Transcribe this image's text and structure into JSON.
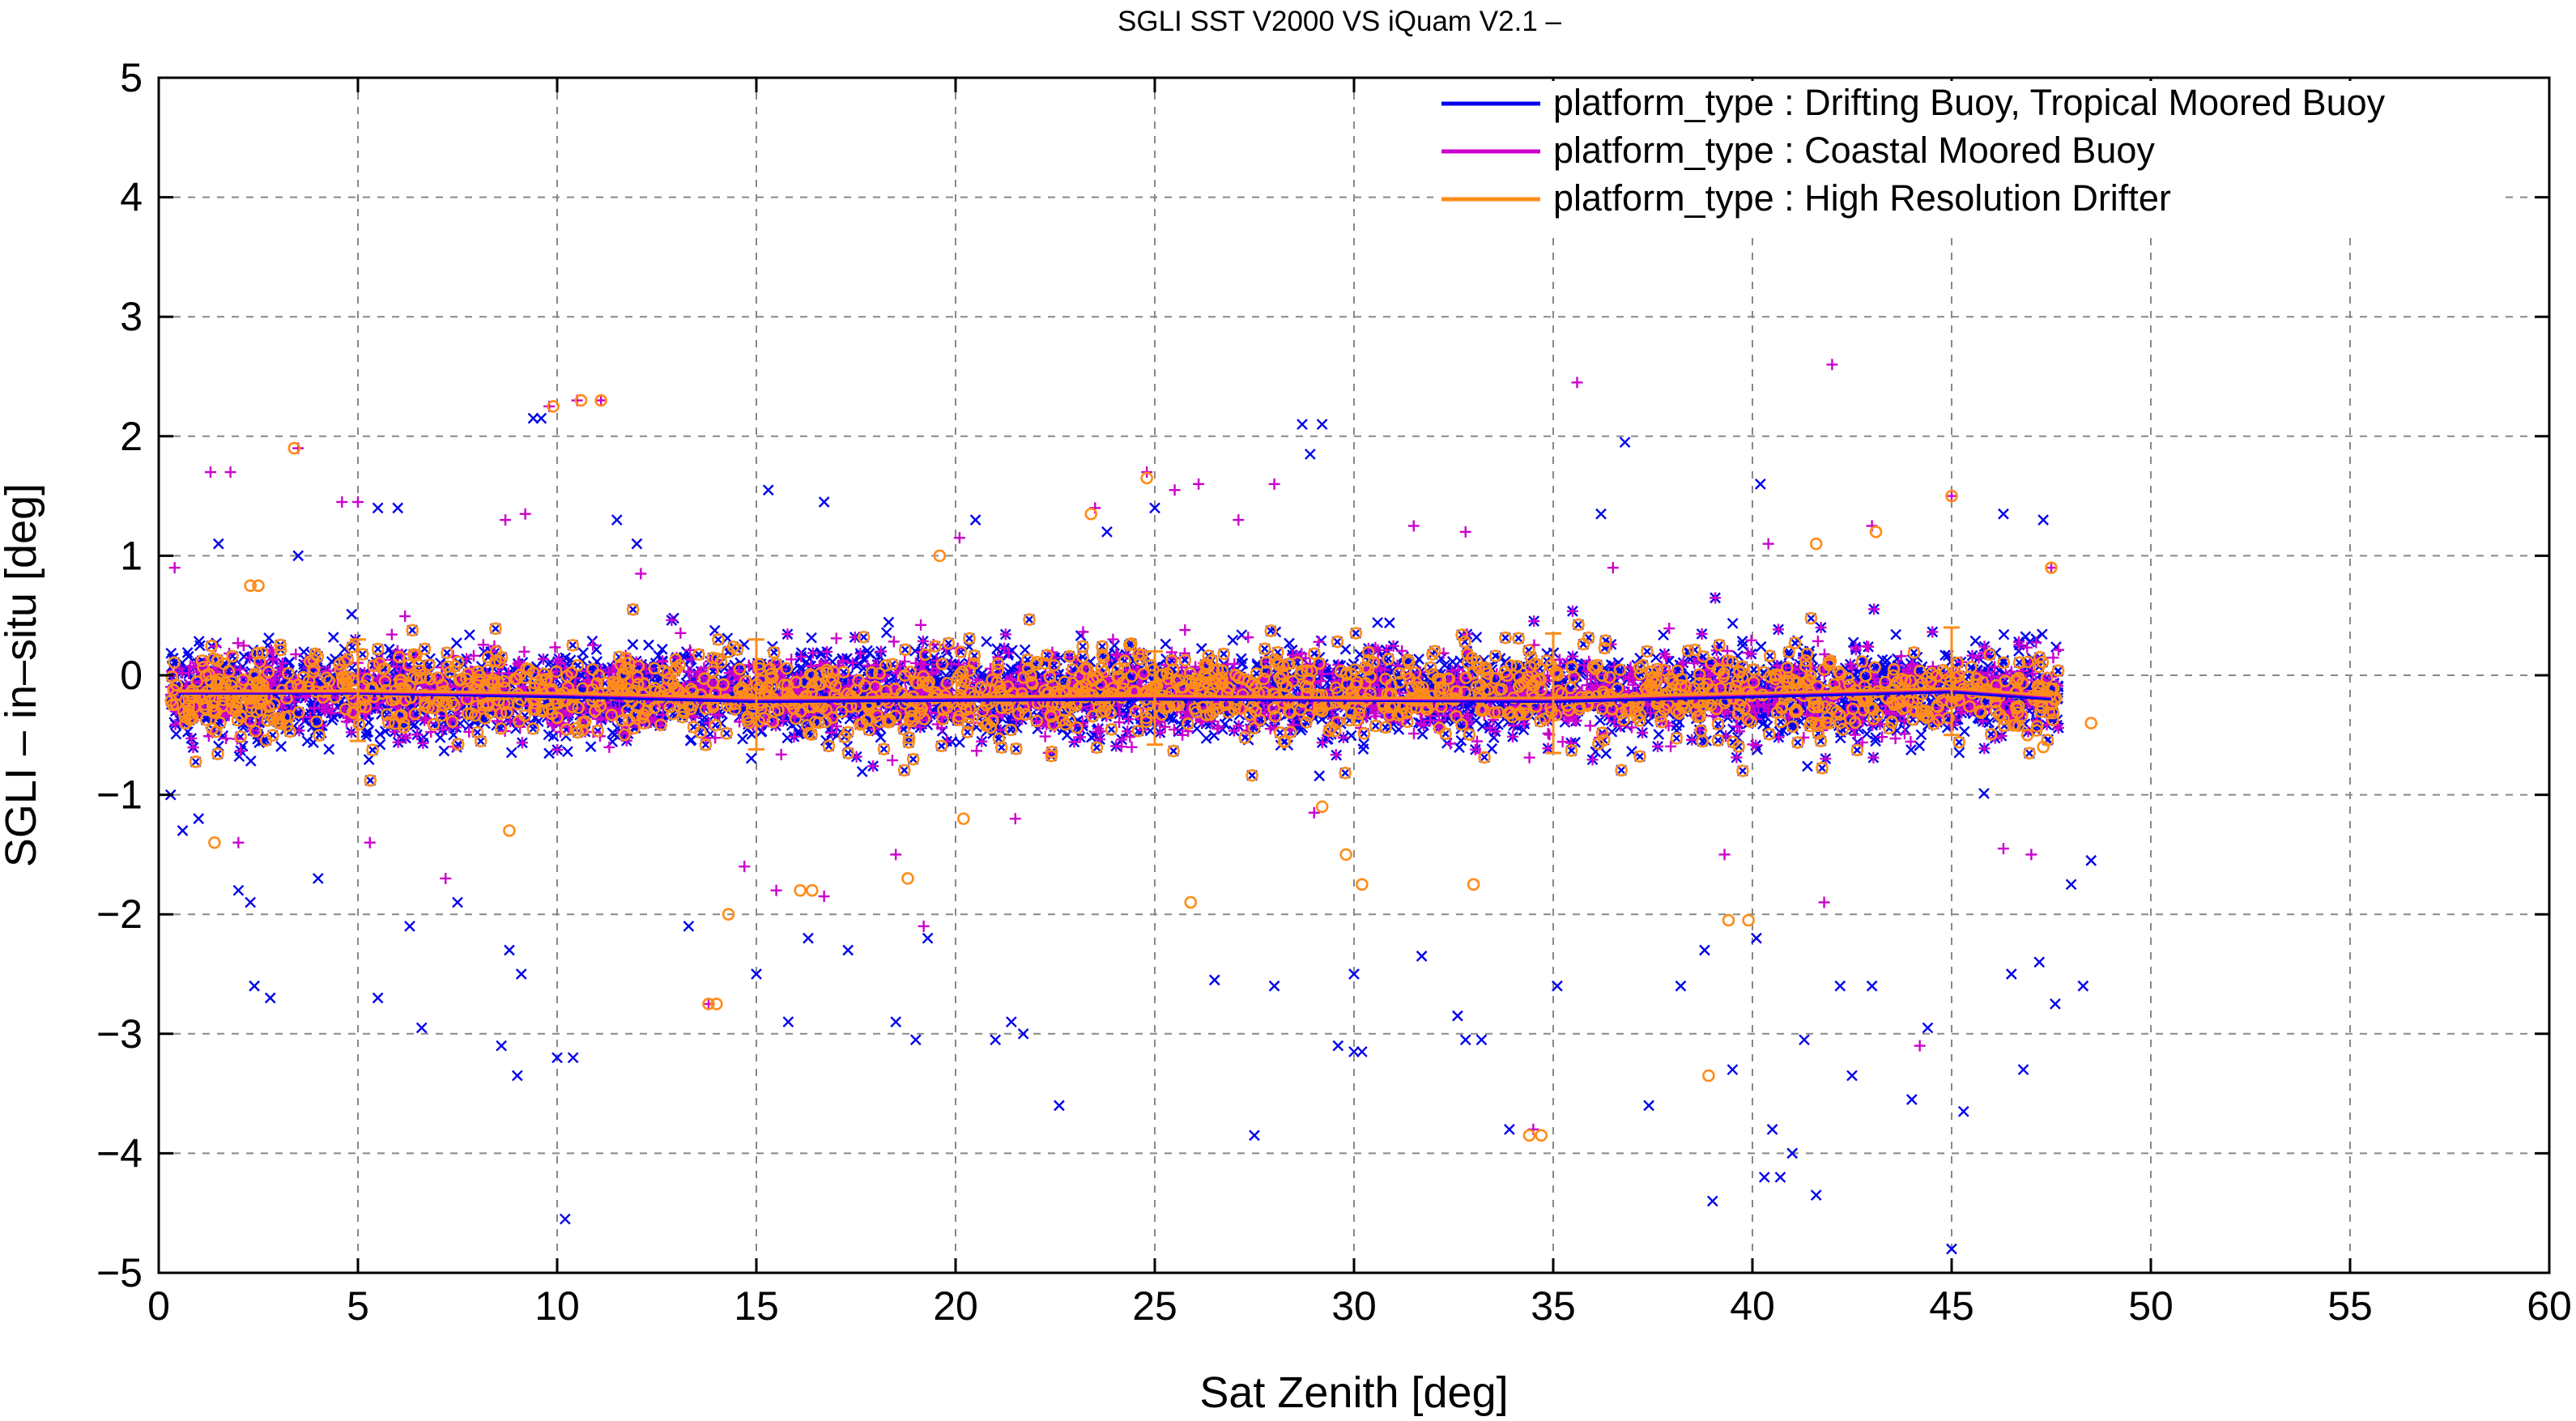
{
  "chart_data": {
    "type": "scatter",
    "title": "SGLI SST V2000 VS iQuam V2.1  –",
    "xlabel": "Sat Zenith [deg]",
    "ylabel": "SGLI – in–situ [deg]",
    "xlim": [
      0,
      60
    ],
    "ylim": [
      -5,
      5
    ],
    "x_ticks": [
      0,
      5,
      10,
      15,
      20,
      25,
      30,
      35,
      40,
      45,
      50,
      55,
      60
    ],
    "y_ticks": [
      -5,
      -4,
      -3,
      -2,
      -1,
      0,
      1,
      2,
      3,
      4,
      5
    ],
    "x_tick_labels": [
      "0",
      "5",
      "10",
      "15",
      "20",
      "25",
      "30",
      "35",
      "40",
      "45",
      "50",
      "55",
      "60"
    ],
    "y_tick_labels": [
      "−5",
      "−4",
      "−3",
      "−2",
      "−1",
      "0",
      "1",
      "2",
      "3",
      "4",
      "5"
    ],
    "grid": true,
    "legend_position": "top-right",
    "series": [
      {
        "name": "platform_type : Drifting Buoy, Tropical Moored Buoy",
        "color": "#0000ee",
        "marker": "x",
        "points": [
          [
            0.3,
            -1.0
          ],
          [
            0.6,
            -1.3
          ],
          [
            1.0,
            -1.2
          ],
          [
            1.5,
            1.1
          ],
          [
            2.0,
            -1.8
          ],
          [
            2.3,
            -1.9
          ],
          [
            2.4,
            -2.6
          ],
          [
            2.8,
            -2.7
          ],
          [
            3.5,
            1.0
          ],
          [
            4.0,
            -1.7
          ],
          [
            5.5,
            1.4
          ],
          [
            5.5,
            -2.7
          ],
          [
            6.0,
            1.4
          ],
          [
            6.3,
            -2.1
          ],
          [
            6.6,
            -2.95
          ],
          [
            7.5,
            -1.9
          ],
          [
            8.6,
            -3.1
          ],
          [
            8.8,
            -2.3
          ],
          [
            9.0,
            -3.35
          ],
          [
            9.1,
            -2.5
          ],
          [
            9.4,
            2.15
          ],
          [
            9.6,
            2.15
          ],
          [
            10.0,
            -3.2
          ],
          [
            10.2,
            -4.55
          ],
          [
            10.4,
            -3.2
          ],
          [
            11.5,
            1.3
          ],
          [
            12.0,
            1.1
          ],
          [
            13.3,
            -2.1
          ],
          [
            15.0,
            -2.5
          ],
          [
            15.3,
            1.55
          ],
          [
            15.8,
            -2.9
          ],
          [
            16.3,
            -2.2
          ],
          [
            16.7,
            1.45
          ],
          [
            17.3,
            -2.3
          ],
          [
            18.5,
            -2.9
          ],
          [
            19.0,
            -3.05
          ],
          [
            19.3,
            -2.2
          ],
          [
            20.5,
            1.3
          ],
          [
            21.0,
            -3.05
          ],
          [
            21.4,
            -2.9
          ],
          [
            21.7,
            -3.0
          ],
          [
            22.6,
            -3.6
          ],
          [
            23.8,
            1.2
          ],
          [
            25.0,
            1.4
          ],
          [
            26.5,
            -2.55
          ],
          [
            27.5,
            -3.85
          ],
          [
            28.0,
            -2.6
          ],
          [
            28.7,
            2.1
          ],
          [
            28.9,
            1.85
          ],
          [
            29.2,
            2.1
          ],
          [
            29.6,
            -3.1
          ],
          [
            30.0,
            -2.5
          ],
          [
            30.0,
            -3.15
          ],
          [
            30.2,
            -3.15
          ],
          [
            31.7,
            -2.35
          ],
          [
            32.6,
            -2.85
          ],
          [
            32.8,
            -3.05
          ],
          [
            33.2,
            -3.05
          ],
          [
            33.9,
            -3.8
          ],
          [
            35.1,
            -2.6
          ],
          [
            36.2,
            1.35
          ],
          [
            36.8,
            1.95
          ],
          [
            37.4,
            -3.6
          ],
          [
            38.2,
            -2.6
          ],
          [
            38.8,
            -2.3
          ],
          [
            39.0,
            -4.4
          ],
          [
            39.5,
            -3.3
          ],
          [
            40.1,
            -2.2
          ],
          [
            40.2,
            1.6
          ],
          [
            40.3,
            -4.2
          ],
          [
            40.5,
            -3.8
          ],
          [
            40.7,
            -4.2
          ],
          [
            41.0,
            -4.0
          ],
          [
            41.3,
            -3.05
          ],
          [
            41.6,
            -4.35
          ],
          [
            42.2,
            -2.6
          ],
          [
            42.5,
            -3.35
          ],
          [
            43.0,
            -2.6
          ],
          [
            44.0,
            -3.55
          ],
          [
            44.4,
            -2.95
          ],
          [
            45.0,
            -4.8
          ],
          [
            45.3,
            -3.65
          ],
          [
            46.3,
            1.35
          ],
          [
            46.5,
            -2.5
          ],
          [
            46.8,
            -3.3
          ],
          [
            47.2,
            -2.4
          ],
          [
            47.3,
            1.3
          ],
          [
            47.6,
            -2.75
          ],
          [
            48.0,
            -1.75
          ],
          [
            48.3,
            -2.6
          ],
          [
            48.5,
            -1.55
          ]
        ]
      },
      {
        "name": "platform_type : Coastal Moored Buoy",
        "color": "#cc00cc",
        "marker": "+",
        "points": [
          [
            0.4,
            0.9
          ],
          [
            1.3,
            1.7
          ],
          [
            1.8,
            1.7
          ],
          [
            2.0,
            -1.4
          ],
          [
            3.5,
            1.9
          ],
          [
            4.6,
            1.45
          ],
          [
            5.0,
            1.45
          ],
          [
            5.3,
            -1.4
          ],
          [
            7.2,
            -1.7
          ],
          [
            8.7,
            1.3
          ],
          [
            9.2,
            1.35
          ],
          [
            9.8,
            2.25
          ],
          [
            10.5,
            2.3
          ],
          [
            11.1,
            2.3
          ],
          [
            12.1,
            0.85
          ],
          [
            13.8,
            -2.75
          ],
          [
            14.7,
            -1.6
          ],
          [
            15.5,
            -1.8
          ],
          [
            16.7,
            -1.85
          ],
          [
            18.5,
            -1.5
          ],
          [
            19.2,
            -2.1
          ],
          [
            20.1,
            1.15
          ],
          [
            21.5,
            -1.2
          ],
          [
            23.5,
            1.4
          ],
          [
            24.8,
            1.7
          ],
          [
            25.5,
            1.55
          ],
          [
            26.1,
            1.6
          ],
          [
            27.1,
            1.3
          ],
          [
            28.0,
            1.6
          ],
          [
            29.0,
            -1.15
          ],
          [
            31.5,
            1.25
          ],
          [
            32.8,
            1.2
          ],
          [
            34.5,
            -3.8
          ],
          [
            35.6,
            2.45
          ],
          [
            36.5,
            0.9
          ],
          [
            39.3,
            -1.5
          ],
          [
            40.4,
            1.1
          ],
          [
            41.8,
            -1.9
          ],
          [
            42.0,
            2.6
          ],
          [
            43.0,
            1.25
          ],
          [
            44.2,
            -3.1
          ],
          [
            45.0,
            1.5
          ],
          [
            46.3,
            -1.45
          ],
          [
            47.0,
            -1.5
          ],
          [
            47.5,
            0.9
          ]
        ]
      },
      {
        "name": "platform_type : High Resolution Drifter",
        "color": "#ff8c1a",
        "marker": "o",
        "points": [
          [
            1.4,
            -1.4
          ],
          [
            2.3,
            0.75
          ],
          [
            2.5,
            0.75
          ],
          [
            3.4,
            1.9
          ],
          [
            8.8,
            -1.3
          ],
          [
            9.9,
            2.25
          ],
          [
            10.6,
            2.3
          ],
          [
            11.1,
            2.3
          ],
          [
            13.8,
            -2.75
          ],
          [
            14.0,
            -2.75
          ],
          [
            14.3,
            -2.0
          ],
          [
            16.1,
            -1.8
          ],
          [
            16.4,
            -1.8
          ],
          [
            18.8,
            -1.7
          ],
          [
            19.6,
            1.0
          ],
          [
            20.2,
            -1.2
          ],
          [
            23.4,
            1.35
          ],
          [
            24.8,
            1.65
          ],
          [
            25.9,
            -1.9
          ],
          [
            29.2,
            -1.1
          ],
          [
            29.8,
            -1.5
          ],
          [
            30.2,
            -1.75
          ],
          [
            33.0,
            -1.75
          ],
          [
            34.4,
            -3.85
          ],
          [
            34.7,
            -3.85
          ],
          [
            38.9,
            -3.35
          ],
          [
            39.4,
            -2.05
          ],
          [
            39.9,
            -2.05
          ],
          [
            41.6,
            1.1
          ],
          [
            43.1,
            1.2
          ],
          [
            45.0,
            1.5
          ],
          [
            46.9,
            -0.5
          ],
          [
            47.3,
            -0.6
          ],
          [
            47.5,
            0.9
          ],
          [
            48.5,
            -0.4
          ]
        ]
      }
    ],
    "dense_band": {
      "x_range": [
        0.3,
        47.7
      ],
      "core_y_range": [
        -0.6,
        0.3
      ],
      "outer_y_range": [
        -1.2,
        0.9
      ]
    },
    "mean_lines": {
      "Drifting Buoy, Tropical Moored Buoy": {
        "x": [
          0.5,
          5,
          10,
          15,
          20,
          25,
          30,
          35,
          40,
          45,
          47.5
        ],
        "y": [
          -0.15,
          -0.15,
          -0.18,
          -0.22,
          -0.21,
          -0.2,
          -0.21,
          -0.22,
          -0.18,
          -0.14,
          -0.2
        ]
      },
      "Coastal Moored Buoy": {
        "x": [
          0.5,
          5,
          10,
          15,
          20,
          25,
          30,
          35,
          40,
          45,
          47.5
        ],
        "y": [
          -0.14,
          -0.14,
          -0.16,
          -0.2,
          -0.19,
          -0.18,
          -0.2,
          -0.2,
          -0.16,
          -0.12,
          -0.18
        ]
      },
      "High Resolution Drifter": {
        "x": [
          0.5,
          5,
          10,
          15,
          20,
          25,
          30,
          35,
          40,
          45,
          47.5
        ],
        "y": [
          -0.13,
          -0.13,
          -0.15,
          -0.19,
          -0.18,
          -0.17,
          -0.19,
          -0.19,
          -0.15,
          -0.11,
          -0.17
        ]
      }
    },
    "error_bars": {
      "x": [
        5,
        15,
        25,
        35,
        45
      ],
      "y_low": [
        -0.55,
        -0.62,
        -0.58,
        -0.65,
        -0.5
      ],
      "y_high": [
        0.3,
        0.3,
        0.2,
        0.35,
        0.4
      ]
    }
  }
}
